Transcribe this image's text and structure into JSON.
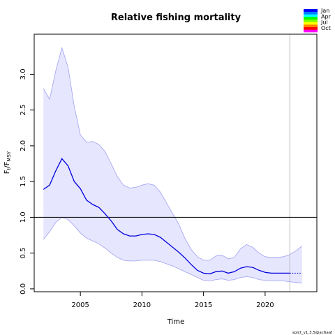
{
  "chart_data": {
    "type": "line",
    "title": "Relative fishing mortality",
    "xlabel": "Time",
    "ylabel": {
      "base": "F",
      "num_sub": "t",
      "sep": "/",
      "den_base": "F",
      "den_sub": "MSY"
    },
    "xlim": [
      2001.25,
      2024.2
    ],
    "ylim": [
      -0.04,
      3.56
    ],
    "x_ticks": [
      2005,
      2010,
      2015,
      2020
    ],
    "y_ticks": [
      0.0,
      0.5,
      1.0,
      1.5,
      2.0,
      2.5,
      3.0
    ],
    "y_tick_labels": [
      "0.0",
      "0.5",
      "1.0",
      "1.5",
      "2.0",
      "2.5",
      "3.0"
    ],
    "reference_line_y": 1.0,
    "vertical_line_x": 2022.0,
    "colors": {
      "estimate": "#0000dd",
      "band_fill": "#e6e6ff",
      "band_edge": "#a0a0f0",
      "reference": "#000000",
      "vline": "#bdbdbd",
      "axes": "#000000"
    },
    "series": [
      {
        "role": "estimate",
        "x": [
          2002.0,
          2002.5,
          2003.0,
          2003.5,
          2004.0,
          2004.5,
          2005.0,
          2005.5,
          2006.0,
          2006.5,
          2007.0,
          2007.5,
          2008.0,
          2008.5,
          2009.0,
          2009.5,
          2010.0,
          2010.5,
          2011.0,
          2011.5,
          2012.0,
          2012.5,
          2013.0,
          2013.5,
          2014.0,
          2014.5,
          2015.0,
          2015.5,
          2016.0,
          2016.5,
          2017.0,
          2017.5,
          2018.0,
          2018.5,
          2019.0,
          2019.5,
          2020.0,
          2020.5,
          2021.0,
          2021.5,
          2022.0
        ],
        "y": [
          1.39,
          1.45,
          1.65,
          1.82,
          1.72,
          1.5,
          1.4,
          1.24,
          1.18,
          1.14,
          1.05,
          0.95,
          0.83,
          0.77,
          0.74,
          0.74,
          0.76,
          0.77,
          0.76,
          0.72,
          0.65,
          0.58,
          0.51,
          0.43,
          0.34,
          0.26,
          0.22,
          0.21,
          0.24,
          0.25,
          0.22,
          0.24,
          0.29,
          0.31,
          0.3,
          0.26,
          0.23,
          0.22,
          0.22,
          0.22,
          0.22
        ]
      },
      {
        "role": "forecast",
        "x": [
          2022.0,
          2023.0
        ],
        "y": [
          0.22,
          0.22
        ]
      },
      {
        "role": "upper",
        "x": [
          2002.0,
          2002.5,
          2003.0,
          2003.5,
          2004.0,
          2004.5,
          2005.0,
          2005.5,
          2006.0,
          2006.5,
          2007.0,
          2007.5,
          2008.0,
          2008.5,
          2009.0,
          2009.5,
          2010.0,
          2010.5,
          2011.0,
          2011.5,
          2012.0,
          2012.5,
          2013.0,
          2013.5,
          2014.0,
          2014.5,
          2015.0,
          2015.5,
          2016.0,
          2016.5,
          2017.0,
          2017.5,
          2018.0,
          2018.5,
          2019.0,
          2019.5,
          2020.0,
          2020.5,
          2021.0,
          2021.5,
          2022.0,
          2022.5,
          2023.0
        ],
        "y": [
          2.8,
          2.65,
          3.05,
          3.37,
          3.1,
          2.55,
          2.15,
          2.05,
          2.06,
          2.02,
          1.92,
          1.75,
          1.57,
          1.45,
          1.41,
          1.42,
          1.45,
          1.47,
          1.45,
          1.35,
          1.2,
          1.05,
          0.9,
          0.7,
          0.55,
          0.45,
          0.4,
          0.4,
          0.46,
          0.47,
          0.42,
          0.44,
          0.56,
          0.62,
          0.58,
          0.5,
          0.45,
          0.44,
          0.44,
          0.45,
          0.48,
          0.53,
          0.6
        ]
      },
      {
        "role": "lower",
        "x": [
          2002.0,
          2002.5,
          2003.0,
          2003.5,
          2004.0,
          2004.5,
          2005.0,
          2005.5,
          2006.0,
          2006.5,
          2007.0,
          2007.5,
          2008.0,
          2008.5,
          2009.0,
          2009.5,
          2010.0,
          2010.5,
          2011.0,
          2011.5,
          2012.0,
          2012.5,
          2013.0,
          2013.5,
          2014.0,
          2014.5,
          2015.0,
          2015.5,
          2016.0,
          2016.5,
          2017.0,
          2017.5,
          2018.0,
          2018.5,
          2019.0,
          2019.5,
          2020.0,
          2020.5,
          2021.0,
          2021.5,
          2022.0,
          2022.5,
          2023.0
        ],
        "y": [
          0.69,
          0.8,
          0.93,
          1.0,
          0.97,
          0.88,
          0.78,
          0.71,
          0.67,
          0.63,
          0.57,
          0.5,
          0.44,
          0.4,
          0.39,
          0.39,
          0.4,
          0.4,
          0.4,
          0.38,
          0.35,
          0.32,
          0.28,
          0.24,
          0.2,
          0.16,
          0.12,
          0.11,
          0.13,
          0.14,
          0.12,
          0.13,
          0.16,
          0.17,
          0.16,
          0.13,
          0.12,
          0.11,
          0.11,
          0.11,
          0.1,
          0.09,
          0.08
        ]
      }
    ],
    "legend": {
      "placement": "top-right",
      "labels": [
        "Jan",
        "Apr",
        "Jul",
        "Oct"
      ],
      "colors": [
        "#ff00ff",
        "#ff0000",
        "#ff8000",
        "#ffff00",
        "#80ff00",
        "#00ff00",
        "#00ffff",
        "#0080ff",
        "#0000ff"
      ]
    },
    "footer": "spict_v1.3.5@ac6aaf"
  }
}
